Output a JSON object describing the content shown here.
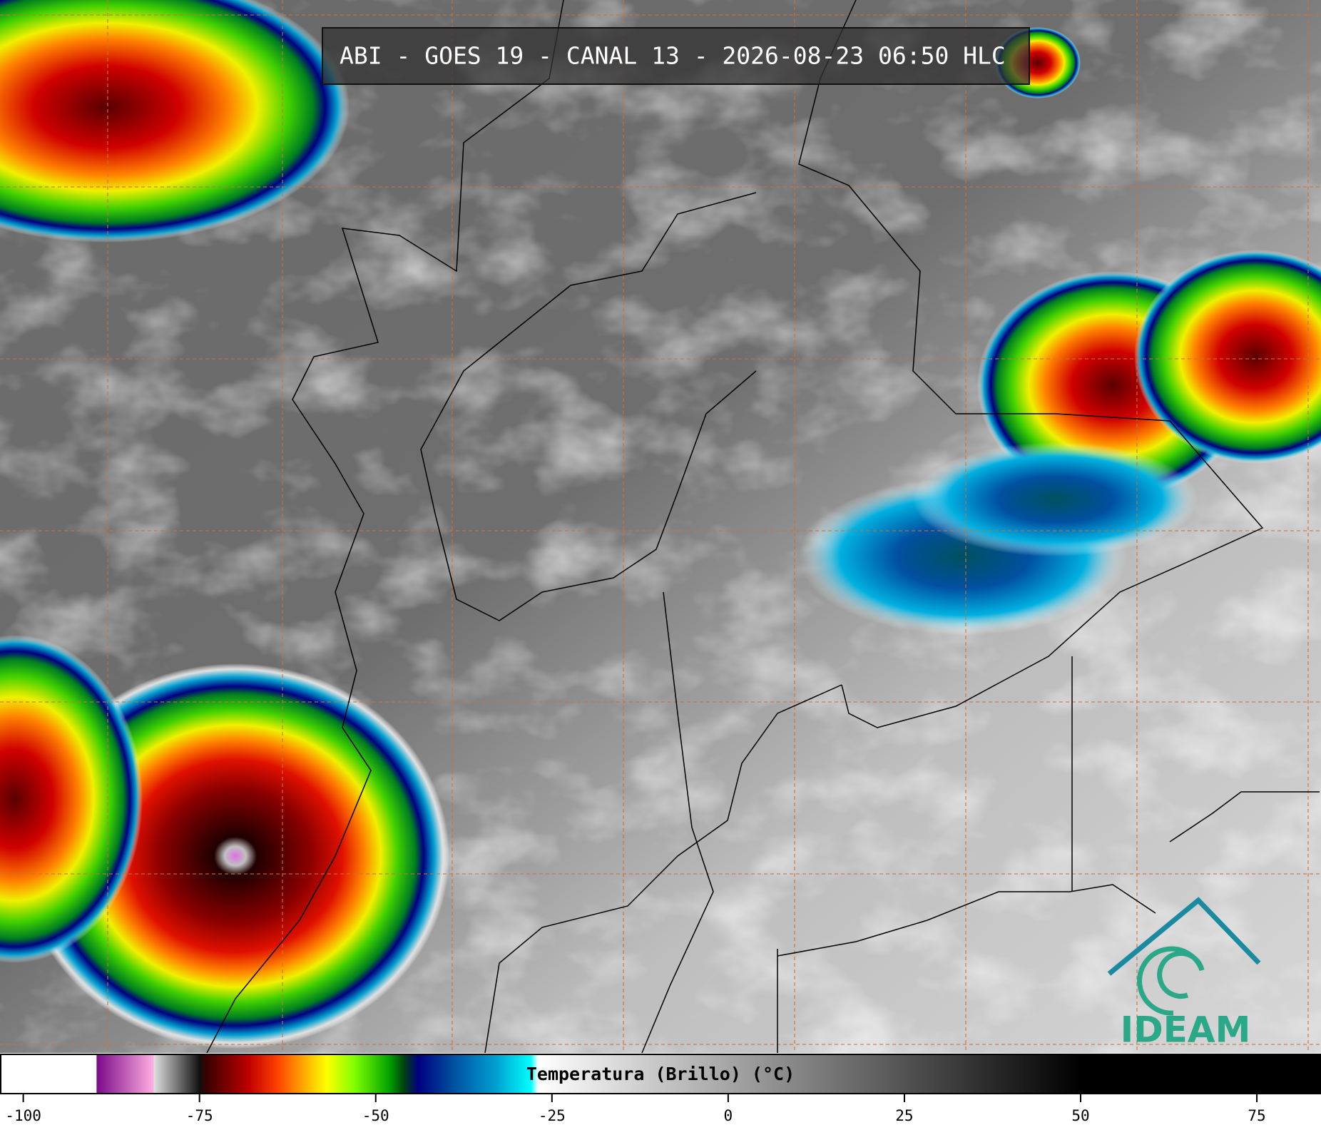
{
  "header": {
    "title": "ABI - GOES 19 - CANAL 13 - 2026-08-23 06:50 HLC"
  },
  "colorbar": {
    "label": "Temperatura (Brillo) (°C)",
    "xlim": [
      -103.3,
      84.1
    ],
    "ticks": [
      -100,
      -75,
      -50,
      -25,
      0,
      25,
      50,
      75
    ],
    "stops": [
      {
        "value": -103.3,
        "color": "#ffffff"
      },
      {
        "value": -89.6,
        "color": "#ffffff"
      },
      {
        "value": -89.6,
        "color": "#7a0a8a"
      },
      {
        "value": -81.5,
        "color": "#ffb0e0"
      },
      {
        "value": -81.5,
        "color": "#e0e0e0"
      },
      {
        "value": -75,
        "color": "#101010"
      },
      {
        "value": -74,
        "color": "#3a0000"
      },
      {
        "value": -68,
        "color": "#c00000"
      },
      {
        "value": -64,
        "color": "#ff4000"
      },
      {
        "value": -60,
        "color": "#ffb000"
      },
      {
        "value": -57,
        "color": "#ffff00"
      },
      {
        "value": -53,
        "color": "#80ff00"
      },
      {
        "value": -48,
        "color": "#00a000"
      },
      {
        "value": -46,
        "color": "#004010"
      },
      {
        "value": -44,
        "color": "#000080"
      },
      {
        "value": -39,
        "color": "#0050a0"
      },
      {
        "value": -33,
        "color": "#00a0d0"
      },
      {
        "value": -28,
        "color": "#00ffff"
      },
      {
        "value": -27,
        "color": "#ffffff"
      },
      {
        "value": 50,
        "color": "#000000"
      },
      {
        "value": 84.1,
        "color": "#000000"
      }
    ]
  },
  "logo": {
    "text": "IDEAM"
  }
}
